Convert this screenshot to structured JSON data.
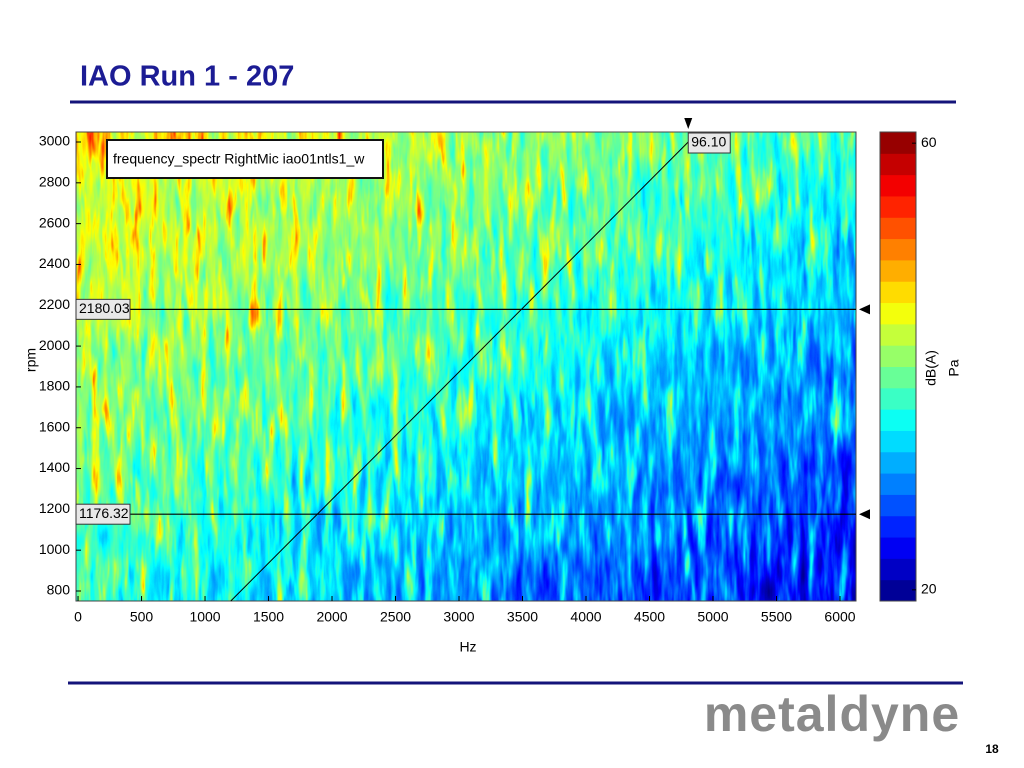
{
  "title": "IAO Run 1 - 207",
  "chart_data": {
    "type": "spectrogram",
    "legend_label": "frequency_spectr RightMic iao01ntls1_w",
    "xlabel": "Hz",
    "ylabel": "rpm",
    "xlim": [
      -16,
      6126
    ],
    "xticks": [
      0,
      500,
      1000,
      1500,
      2000,
      2500,
      3000,
      3500,
      4000,
      4500,
      5000,
      5500,
      6000
    ],
    "ylim": [
      751,
      3049
    ],
    "yticks": [
      800,
      1000,
      1200,
      1400,
      1600,
      1800,
      2000,
      2200,
      2400,
      2600,
      2800,
      3000
    ],
    "order_cursor": {
      "value": 96.1,
      "label": "96.10"
    },
    "rpm_cursors": [
      2180.03,
      1176.32
    ],
    "colorbar": {
      "lim": [
        19,
        61
      ],
      "ticks": [
        20,
        60
      ],
      "label": "dB(A)",
      "unit": "Pa"
    }
  },
  "logo": "metaldyne",
  "page_number": "18"
}
